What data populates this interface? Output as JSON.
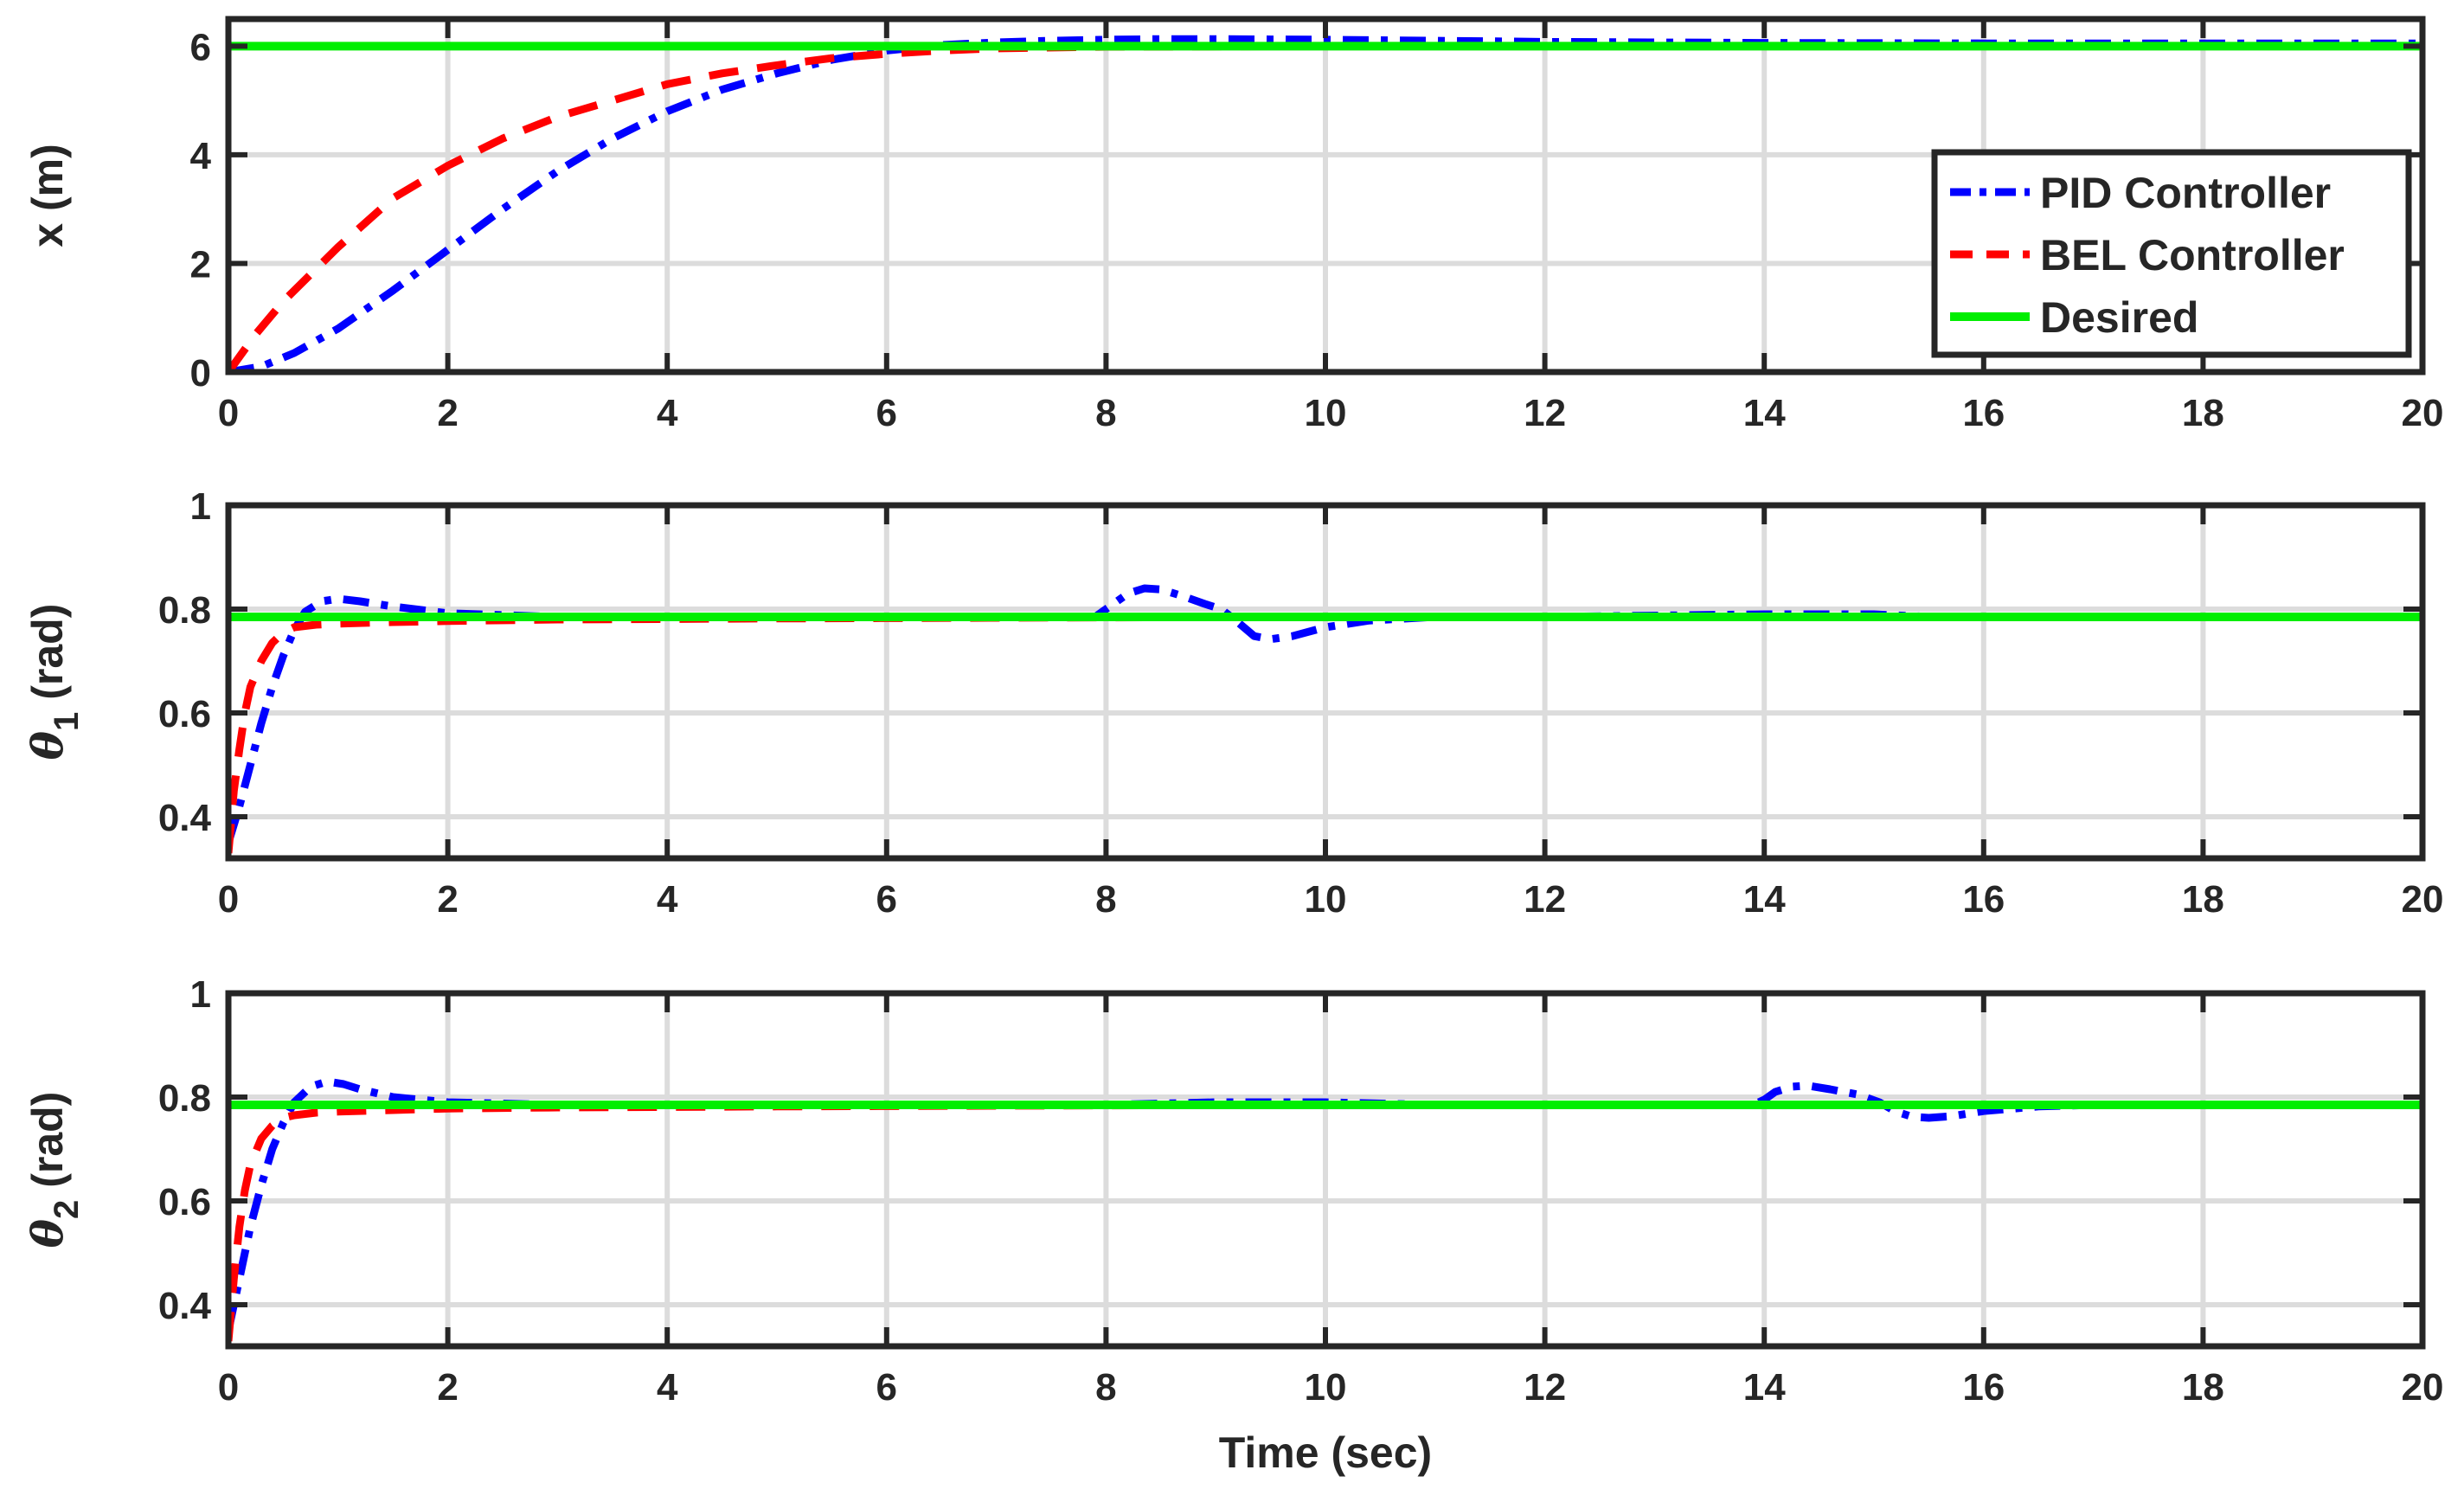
{
  "chart_data": [
    {
      "type": "line",
      "ylabel": "x (m)",
      "xlim": [
        0,
        20
      ],
      "ylim": [
        0,
        6.5
      ],
      "xticks": [
        0,
        2,
        4,
        6,
        8,
        10,
        12,
        14,
        16,
        18,
        20
      ],
      "yticks": [
        0,
        2,
        4,
        6
      ],
      "grid": true,
      "legend": {
        "placement": "right",
        "entries": [
          "PID Controller",
          "BEL Controller",
          "Desired"
        ]
      },
      "series": [
        {
          "name": "PID Controller",
          "color": "#0000ff",
          "style": "dash-dot",
          "x": [
            0,
            0.3,
            0.6,
            1,
            1.5,
            2,
            2.5,
            3,
            3.5,
            4,
            4.5,
            5,
            5.5,
            6,
            6.5,
            7,
            7.5,
            8,
            8.5,
            9,
            10,
            11,
            12,
            14,
            16,
            18,
            20
          ],
          "y": [
            0,
            0.1,
            0.35,
            0.8,
            1.5,
            2.25,
            3.0,
            3.7,
            4.3,
            4.8,
            5.2,
            5.5,
            5.75,
            5.92,
            6.02,
            6.07,
            6.1,
            6.12,
            6.13,
            6.13,
            6.12,
            6.1,
            6.08,
            6.06,
            6.05,
            6.05,
            6.05
          ]
        },
        {
          "name": "BEL Controller",
          "color": "#ff0000",
          "style": "dashed",
          "x": [
            0,
            0.25,
            0.5,
            1,
            1.5,
            2,
            2.5,
            3,
            3.5,
            4,
            4.5,
            5,
            5.5,
            6,
            6.5,
            7,
            8,
            10,
            12,
            14,
            16,
            18,
            20
          ],
          "y": [
            0,
            0.7,
            1.3,
            2.3,
            3.2,
            3.8,
            4.3,
            4.7,
            5.0,
            5.3,
            5.5,
            5.65,
            5.78,
            5.86,
            5.92,
            5.96,
            5.99,
            6.0,
            6.0,
            6.0,
            6.0,
            6.0,
            6.0
          ]
        },
        {
          "name": "Desired",
          "color": "#00ee00",
          "style": "solid",
          "x": [
            0,
            20
          ],
          "y": [
            6,
            6
          ]
        }
      ]
    },
    {
      "type": "line",
      "ylabel": "θ",
      "ylabel_sub": "1",
      "ylabel_unit": "(rad)",
      "xlim": [
        0,
        20
      ],
      "ylim": [
        0.32,
        1.0
      ],
      "xticks": [
        0,
        2,
        4,
        6,
        8,
        10,
        12,
        14,
        16,
        18,
        20
      ],
      "yticks": [
        0.4,
        0.6,
        0.8,
        1
      ],
      "ytick_labels": [
        "0.4",
        "0.6",
        "0.8",
        "1"
      ],
      "grid": true,
      "series": [
        {
          "name": "PID Controller",
          "color": "#0000ff",
          "style": "dash-dot",
          "x": [
            0,
            0.1,
            0.2,
            0.3,
            0.4,
            0.5,
            0.6,
            0.7,
            0.85,
            1,
            1.2,
            1.5,
            2,
            3,
            5,
            7,
            7.9,
            8,
            8.1,
            8.2,
            8.35,
            8.5,
            8.7,
            8.9,
            9.05,
            9.2,
            9.35,
            9.5,
            9.7,
            10,
            10.4,
            11,
            12,
            14,
            15,
            15.5,
            16,
            18,
            20
          ],
          "y": [
            0.35,
            0.42,
            0.5,
            0.58,
            0.65,
            0.71,
            0.76,
            0.795,
            0.815,
            0.82,
            0.815,
            0.805,
            0.792,
            0.785,
            0.785,
            0.785,
            0.785,
            0.8,
            0.815,
            0.83,
            0.84,
            0.838,
            0.825,
            0.81,
            0.8,
            0.775,
            0.748,
            0.742,
            0.748,
            0.765,
            0.778,
            0.785,
            0.785,
            0.79,
            0.79,
            0.785,
            0.785,
            0.785,
            0.785
          ]
        },
        {
          "name": "BEL Controller",
          "color": "#ff0000",
          "style": "dashed",
          "x": [
            0,
            0.05,
            0.1,
            0.15,
            0.2,
            0.3,
            0.4,
            0.5,
            0.6,
            0.8,
            1,
            1.5,
            2,
            3,
            5,
            8,
            10,
            12,
            14,
            16,
            18,
            20
          ],
          "y": [
            0.33,
            0.45,
            0.53,
            0.6,
            0.65,
            0.7,
            0.735,
            0.755,
            0.765,
            0.77,
            0.772,
            0.775,
            0.777,
            0.78,
            0.782,
            0.784,
            0.785,
            0.785,
            0.785,
            0.785,
            0.785,
            0.785
          ]
        },
        {
          "name": "Desired",
          "color": "#00ee00",
          "style": "solid",
          "x": [
            0,
            20
          ],
          "y": [
            0.785,
            0.785
          ]
        }
      ]
    },
    {
      "type": "line",
      "xlabel": "Time (sec)",
      "ylabel": "θ",
      "ylabel_sub": "2",
      "ylabel_unit": "(rad)",
      "xlim": [
        0,
        20
      ],
      "ylim": [
        0.32,
        1.0
      ],
      "xticks": [
        0,
        2,
        4,
        6,
        8,
        10,
        12,
        14,
        16,
        18,
        20
      ],
      "yticks": [
        0.4,
        0.6,
        0.8,
        1
      ],
      "ytick_labels": [
        "0.4",
        "0.6",
        "0.8",
        "1"
      ],
      "grid": true,
      "series": [
        {
          "name": "PID Controller",
          "color": "#0000ff",
          "style": "dash-dot",
          "x": [
            0,
            0.1,
            0.2,
            0.3,
            0.4,
            0.5,
            0.6,
            0.75,
            0.9,
            1.05,
            1.2,
            1.5,
            2,
            3,
            5,
            8,
            9,
            10,
            11,
            13.9,
            14,
            14.1,
            14.25,
            14.4,
            14.6,
            14.85,
            15.05,
            15.2,
            15.35,
            15.5,
            15.7,
            16,
            16.5,
            17,
            18,
            20
          ],
          "y": [
            0.35,
            0.45,
            0.55,
            0.63,
            0.7,
            0.75,
            0.79,
            0.82,
            0.83,
            0.825,
            0.815,
            0.8,
            0.79,
            0.785,
            0.785,
            0.785,
            0.79,
            0.79,
            0.785,
            0.785,
            0.795,
            0.81,
            0.82,
            0.822,
            0.815,
            0.805,
            0.79,
            0.772,
            0.762,
            0.76,
            0.763,
            0.773,
            0.782,
            0.785,
            0.785,
            0.785
          ]
        },
        {
          "name": "BEL Controller",
          "color": "#ff0000",
          "style": "dashed",
          "x": [
            0,
            0.05,
            0.1,
            0.15,
            0.2,
            0.3,
            0.4,
            0.5,
            0.6,
            0.8,
            1,
            1.5,
            2,
            3,
            5,
            8,
            10,
            12,
            14,
            16,
            18,
            20
          ],
          "y": [
            0.33,
            0.45,
            0.55,
            0.62,
            0.67,
            0.72,
            0.745,
            0.76,
            0.765,
            0.77,
            0.772,
            0.775,
            0.778,
            0.78,
            0.782,
            0.784,
            0.785,
            0.785,
            0.785,
            0.785,
            0.785,
            0.785
          ]
        },
        {
          "name": "Desired",
          "color": "#00ee00",
          "style": "solid",
          "x": [
            0,
            20
          ],
          "y": [
            0.785,
            0.785
          ]
        }
      ]
    }
  ]
}
